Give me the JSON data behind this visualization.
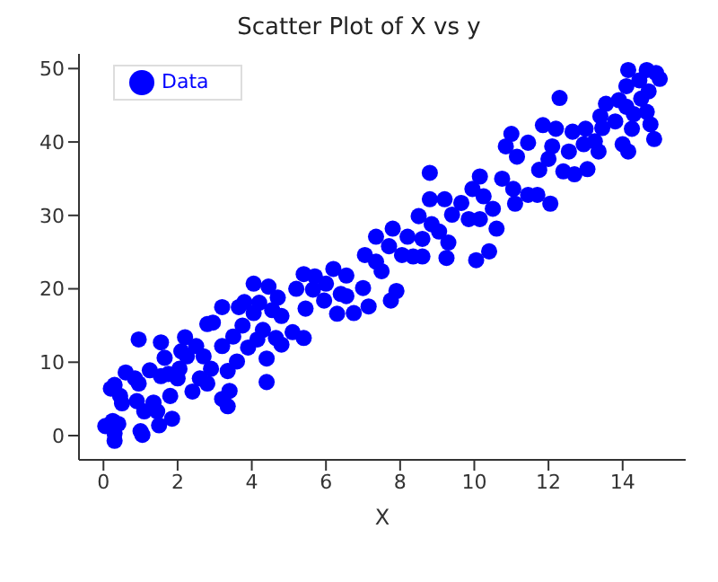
{
  "chart_data": {
    "type": "scatter",
    "title": "Scatter Plot of X vs y",
    "xlabel": "X",
    "xlim": [
      -0.66,
      15.7
    ],
    "ylim": [
      -3.3,
      52
    ],
    "xticks": [
      0,
      2,
      4,
      6,
      8,
      10,
      12,
      14
    ],
    "yticks": [
      0,
      10,
      20,
      30,
      40,
      50
    ],
    "grid": false,
    "legend": "top left",
    "marker": "circle",
    "x": [
      0.05,
      0.3,
      0.3,
      0.25,
      0.4,
      0.2,
      0.3,
      0.45,
      0.5,
      0.6,
      0.85,
      0.95,
      0.95,
      0.9,
      1.0,
      1.05,
      1.1,
      1.25,
      1.35,
      1.45,
      1.5,
      1.55,
      1.55,
      1.65,
      1.75,
      1.85,
      1.8,
      2.0,
      2.05,
      2.1,
      2.2,
      2.25,
      2.4,
      2.5,
      2.6,
      2.7,
      2.8,
      2.8,
      2.95,
      2.9,
      3.2,
      3.2,
      3.2,
      3.35,
      3.4,
      3.35,
      3.5,
      3.6,
      3.65,
      3.8,
      3.75,
      3.9,
      4.05,
      4.05,
      4.15,
      4.2,
      4.3,
      4.4,
      4.4,
      4.45,
      4.55,
      4.65,
      4.7,
      4.8,
      4.8,
      5.1,
      5.2,
      5.4,
      5.4,
      5.45,
      5.65,
      5.7,
      5.95,
      6.0,
      6.2,
      6.3,
      6.4,
      6.55,
      6.55,
      6.75,
      7.0,
      7.05,
      7.15,
      7.35,
      7.35,
      7.5,
      7.7,
      7.75,
      7.8,
      7.9,
      8.05,
      8.2,
      8.35,
      8.5,
      8.6,
      8.6,
      8.8,
      8.8,
      8.85,
      9.05,
      9.2,
      9.25,
      9.3,
      9.4,
      9.65,
      9.85,
      9.95,
      10.05,
      10.15,
      10.15,
      10.25,
      10.4,
      10.5,
      10.6,
      10.75,
      10.85,
      11.0,
      11.05,
      11.1,
      11.15,
      11.45,
      11.45,
      11.7,
      11.75,
      11.85,
      12.0,
      12.05,
      12.1,
      12.2,
      12.3,
      12.4,
      12.55,
      12.65,
      12.7,
      12.95,
      13.05,
      13.0,
      13.25,
      13.35,
      13.4,
      13.45,
      13.55,
      13.8,
      13.9,
      14.0,
      14.1,
      14.15,
      14.15,
      14.1,
      14.25,
      14.3,
      14.45,
      14.5,
      14.65,
      14.65,
      14.7,
      14.75,
      14.85,
      14.9,
      15.0
    ],
    "series": [
      {
        "name": "Data",
        "color": "#0000ff",
        "values": [
          1.3,
          -0.7,
          0.3,
          2,
          1.6,
          6.4,
          6.9,
          5.4,
          4.4,
          8.6,
          7.8,
          13.1,
          7.1,
          4.7,
          0.6,
          0.1,
          3.3,
          8.9,
          4.5,
          3.3,
          1.4,
          8.1,
          12.7,
          10.6,
          8.4,
          2.3,
          5.4,
          7.8,
          9.1,
          11.5,
          13.4,
          10.8,
          6.0,
          12.2,
          7.8,
          10.8,
          7.1,
          15.2,
          15.4,
          9.1,
          17.5,
          12.2,
          5.0,
          4.0,
          6.1,
          8.8,
          13.5,
          10.1,
          17.5,
          18.2,
          15.0,
          12.0,
          20.7,
          16.7,
          13.1,
          18.1,
          14.4,
          10.5,
          7.3,
          20.3,
          17.1,
          13.3,
          18.8,
          16.3,
          12.4,
          14.1,
          20.0,
          22.0,
          13.3,
          17.3,
          19.9,
          21.7,
          18.4,
          20.7,
          22.7,
          16.6,
          19.3,
          21.8,
          19.0,
          16.7,
          20.1,
          24.6,
          17.6,
          23.7,
          27.1,
          22.4,
          25.8,
          18.4,
          28.2,
          19.7,
          24.6,
          27.1,
          24.4,
          29.9,
          26.8,
          24.4,
          35.8,
          32.2,
          28.8,
          27.8,
          32.2,
          24.2,
          26.3,
          30.1,
          31.7,
          29.5,
          33.6,
          23.9,
          29.5,
          35.3,
          32.6,
          25.1,
          30.9,
          28.2,
          35.0,
          39.4,
          41.1,
          33.6,
          31.6,
          38.0,
          39.9,
          32.8,
          32.8,
          36.2,
          42.3,
          37.7,
          31.6,
          39.4,
          41.8,
          46.0,
          36.0,
          38.7,
          41.4,
          35.6,
          39.7,
          36.3,
          41.8,
          40.1,
          38.7,
          43.5,
          41.9,
          45.2,
          42.8,
          45.7,
          39.7,
          44.8,
          38.7,
          49.8,
          47.6,
          41.8,
          43.8,
          48.4,
          45.9,
          44.1,
          49.8,
          46.9,
          42.4,
          40.4,
          49.4,
          48.6
        ]
      }
    ]
  }
}
